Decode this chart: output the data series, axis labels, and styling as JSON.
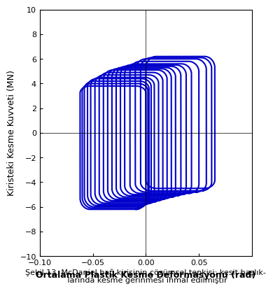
{
  "title": "",
  "xlabel": "Ortalama Plastik Kesme Deformasyonu (rad)",
  "ylabel": "Kiristeki Kesme Kuvveti (MN)",
  "caption": "Şekil 13. McDaniel bağ kirişinin çözümsel tepkisi: kesit başlık-\n larında kesme gerinmesi ihmal edilmiştir",
  "xlim": [
    -0.1,
    0.1
  ],
  "ylim": [
    -10,
    10
  ],
  "xticks": [
    -0.1,
    -0.05,
    0,
    0.05
  ],
  "yticks": [
    -10,
    -8,
    -6,
    -4,
    -2,
    0,
    2,
    4,
    6,
    8,
    10
  ],
  "line_color": "#0000CC",
  "line_width": 1.5,
  "figsize": [
    3.8,
    4.2
  ],
  "dpi": 100,
  "background_color": "#ffffff",
  "grid": false,
  "loops": [
    {
      "x_min": -0.062,
      "x_max": 0.0,
      "y_max": 3.8,
      "y_min": -6.2
    },
    {
      "x_min": -0.06,
      "x_max": 0.002,
      "y_max": 4.0,
      "y_min": -6.1
    },
    {
      "x_min": -0.058,
      "x_max": 0.003,
      "y_max": 4.2,
      "y_min": -6.0
    },
    {
      "x_min": -0.055,
      "x_max": 0.005,
      "y_max": 4.4,
      "y_min": -5.9
    },
    {
      "x_min": -0.052,
      "x_max": 0.008,
      "y_max": 4.5,
      "y_min": -5.8
    },
    {
      "x_min": -0.048,
      "x_max": 0.012,
      "y_max": 4.7,
      "y_min": -5.7
    },
    {
      "x_min": -0.044,
      "x_max": 0.016,
      "y_max": 4.9,
      "y_min": -5.6
    },
    {
      "x_min": -0.04,
      "x_max": 0.02,
      "y_max": 5.1,
      "y_min": -5.5
    },
    {
      "x_min": -0.036,
      "x_max": 0.024,
      "y_max": 5.2,
      "y_min": -5.4
    },
    {
      "x_min": -0.032,
      "x_max": 0.028,
      "y_max": 5.3,
      "y_min": -5.3
    },
    {
      "x_min": -0.028,
      "x_max": 0.033,
      "y_max": 5.4,
      "y_min": -5.2
    },
    {
      "x_min": -0.024,
      "x_max": 0.038,
      "y_max": 5.5,
      "y_min": -5.1
    },
    {
      "x_min": -0.02,
      "x_max": 0.043,
      "y_max": 5.6,
      "y_min": -5.0
    },
    {
      "x_min": -0.015,
      "x_max": 0.05,
      "y_max": 5.8,
      "y_min": -4.9
    },
    {
      "x_min": -0.01,
      "x_max": 0.057,
      "y_max": 6.0,
      "y_min": -4.8
    },
    {
      "x_min": -0.005,
      "x_max": 0.062,
      "y_max": 6.1,
      "y_min": -4.7
    },
    {
      "x_min": 0.0,
      "x_max": 0.065,
      "y_max": 6.2,
      "y_min": -4.5
    }
  ]
}
